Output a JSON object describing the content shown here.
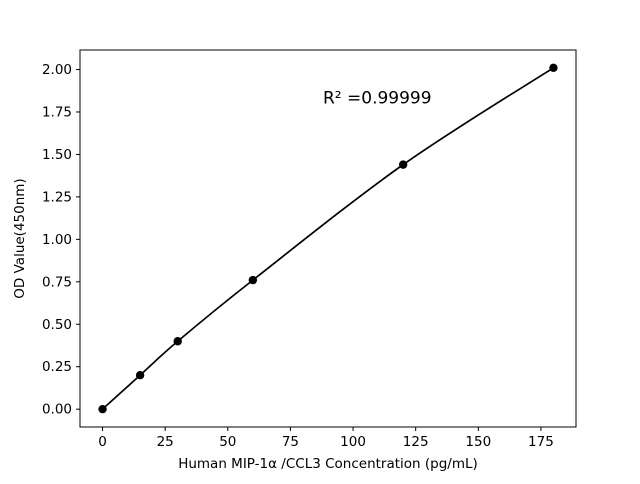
{
  "figure": {
    "background": "#ffffff"
  },
  "chart_data": {
    "type": "line",
    "title": "",
    "xlabel": "Human MIP-1α /CCL3 Concentration (pg/mL)",
    "ylabel": "OD Value(450nm)",
    "x": [
      0,
      15,
      30,
      60,
      120,
      180
    ],
    "y": [
      0.0,
      0.2,
      0.4,
      0.76,
      1.44,
      2.01
    ],
    "xlim": [
      -9,
      189
    ],
    "ylim": [
      -0.105,
      2.115
    ],
    "xticks": [
      0,
      25,
      50,
      75,
      100,
      125,
      150,
      175
    ],
    "xtick_labels": [
      "0",
      "25",
      "50",
      "75",
      "100",
      "125",
      "150",
      "175"
    ],
    "yticks": [
      0.0,
      0.25,
      0.5,
      0.75,
      1.0,
      1.25,
      1.5,
      1.75,
      2.0
    ],
    "ytick_labels": [
      "0.00",
      "0.25",
      "0.50",
      "0.75",
      "1.00",
      "1.25",
      "1.50",
      "1.75",
      "2.00"
    ],
    "annotation": {
      "text": "R² =0.99999",
      "x": 88,
      "y": 1.8
    },
    "line_color": "#000000",
    "marker_color": "#000000",
    "marker_size": 4.2,
    "line_width": 1.7,
    "grid": false,
    "legend": null
  }
}
